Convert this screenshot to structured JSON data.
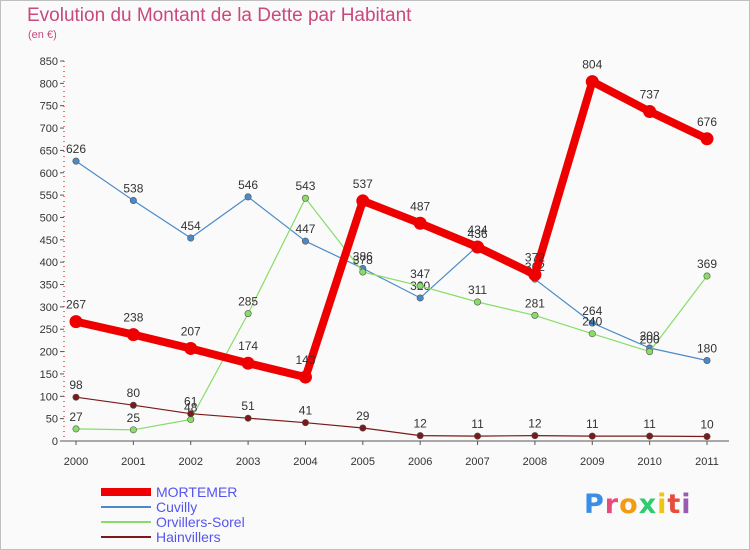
{
  "header": {
    "title": "Evolution du Montant de la Dette par Habitant",
    "subtitle": "(en €)"
  },
  "logo": {
    "text": "Proxiti",
    "colors": [
      "#3a8ee6",
      "#e84a7a",
      "#f39c12",
      "#2ecc71",
      "#f1c40f",
      "#e74c3c",
      "#9b59b6"
    ]
  },
  "chart_data": {
    "type": "line",
    "title": "Evolution du Montant de la Dette par Habitant",
    "subtitle": "(en €)",
    "x": [
      "2000",
      "2001",
      "2002",
      "2003",
      "2004",
      "2005",
      "2006",
      "2007",
      "2008",
      "2009",
      "2010",
      "2011"
    ],
    "ylim": [
      0,
      850
    ],
    "yticks": [
      0,
      50,
      100,
      150,
      200,
      250,
      300,
      350,
      400,
      450,
      500,
      550,
      600,
      650,
      700,
      750,
      800,
      850
    ],
    "grid": false,
    "legend_position": "bottom-left",
    "series": [
      {
        "name": "MORTEMER",
        "color": "#ee0000",
        "emphasis": true,
        "values": [
          267,
          238,
          207,
          174,
          143,
          537,
          487,
          434,
          372,
          804,
          737,
          676
        ]
      },
      {
        "name": "Cuvilly",
        "color": "#4a8ac9",
        "emphasis": false,
        "values": [
          626,
          538,
          454,
          546,
          447,
          386,
          320,
          436,
          362,
          264,
          208,
          180
        ]
      },
      {
        "name": "Orvillers-Sorel",
        "color": "#88dd66",
        "emphasis": false,
        "values": [
          27,
          25,
          48,
          285,
          543,
          378,
          347,
          311,
          281,
          240,
          200,
          369
        ]
      },
      {
        "name": "Hainvillers",
        "color": "#7a1a1a",
        "emphasis": false,
        "values": [
          98,
          80,
          61,
          51,
          41,
          29,
          12,
          11,
          12,
          11,
          11,
          10
        ]
      }
    ]
  }
}
